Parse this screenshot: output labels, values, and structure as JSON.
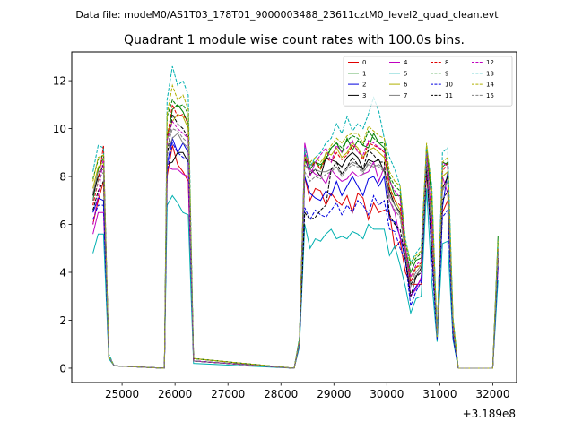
{
  "chart_data": {
    "type": "line",
    "suptitle": "Data file: modeM0/AS1T03_178T01_9000003488_23611cztM0_level2_quad_clean.evt",
    "title": "Quadrant 1 module wise count rates with 100.0s bins.",
    "xlabel": "",
    "ylabel": "",
    "x_offset_label": "+3.189e8",
    "xlim": [
      24050,
      32450
    ],
    "ylim": [
      -0.6,
      13.2
    ],
    "xticks": [
      25000,
      26000,
      27000,
      28000,
      29000,
      30000,
      31000,
      32000
    ],
    "yticks": [
      0,
      2,
      4,
      6,
      8,
      10,
      12
    ],
    "legend": {
      "location": "upper right",
      "columns": 4
    },
    "x": [
      24450,
      24550,
      24650,
      24750,
      24850,
      25800,
      25850,
      25950,
      26050,
      26150,
      26250,
      26350,
      28250,
      28350,
      28450,
      28550,
      28650,
      28750,
      28850,
      28950,
      29050,
      29150,
      29250,
      29350,
      29450,
      29550,
      29650,
      29750,
      29850,
      29950,
      30050,
      30150,
      30250,
      30350,
      30450,
      30550,
      30650,
      30750,
      30850,
      30950,
      31050,
      31150,
      31250,
      31350,
      31450,
      32000,
      32100
    ],
    "series": [
      {
        "name": "0",
        "color": "#e00000",
        "dash": "solid",
        "values": [
          6.0,
          7.0,
          7.8,
          0.5,
          0.1,
          0.0,
          8.0,
          9.3,
          8.5,
          8.2,
          7.8,
          0.3,
          0.0,
          1.0,
          8.0,
          7.0,
          7.5,
          7.4,
          6.8,
          7.3,
          7.0,
          6.8,
          7.2,
          6.5,
          7.3,
          7.1,
          6.2,
          6.9,
          6.5,
          6.6,
          6.5,
          5.0,
          5.3,
          4.0,
          3.5,
          3.5,
          3.5,
          8.2,
          5.0,
          1.4,
          6.5,
          7.0,
          1.5,
          0.0,
          0.0,
          0.0,
          4.5
        ]
      },
      {
        "name": "1",
        "color": "#008000",
        "dash": "solid",
        "values": [
          7.0,
          8.3,
          8.8,
          0.5,
          0.1,
          0.0,
          9.5,
          10.8,
          11.0,
          10.7,
          10.2,
          0.4,
          0.0,
          1.2,
          9.0,
          8.3,
          8.6,
          8.5,
          8.7,
          9.2,
          9.4,
          9.0,
          9.6,
          9.1,
          9.5,
          9.3,
          9.2,
          9.8,
          9.4,
          9.2,
          7.9,
          7.2,
          7.2,
          5.0,
          4.0,
          4.5,
          4.6,
          9.2,
          7.0,
          1.3,
          8.6,
          8.5,
          2.0,
          0.0,
          0.0,
          0.0,
          5.5
        ]
      },
      {
        "name": "2",
        "color": "#0000e0",
        "dash": "solid",
        "values": [
          6.5,
          7.1,
          7.0,
          0.5,
          0.1,
          0.0,
          8.5,
          9.6,
          9.0,
          9.4,
          9.0,
          0.3,
          0.0,
          1.0,
          8.0,
          7.3,
          7.1,
          7.0,
          7.4,
          7.2,
          7.8,
          7.2,
          7.6,
          8.0,
          7.6,
          7.2,
          7.9,
          8.0,
          7.6,
          8.0,
          6.2,
          6.1,
          5.5,
          4.5,
          3.0,
          3.4,
          3.7,
          8.7,
          4.8,
          1.3,
          6.7,
          8.2,
          1.4,
          0.0,
          0.0,
          0.0,
          4.6
        ]
      },
      {
        "name": "3",
        "color": "#000000",
        "dash": "solid",
        "values": [
          7.2,
          8.0,
          8.5,
          0.5,
          0.1,
          0.0,
          8.5,
          8.6,
          9.0,
          9.0,
          8.6,
          0.3,
          0.0,
          1.1,
          8.8,
          8.1,
          8.3,
          8.0,
          8.8,
          8.7,
          8.6,
          8.4,
          8.8,
          9.0,
          8.8,
          8.3,
          8.7,
          8.6,
          8.7,
          8.2,
          7.4,
          6.8,
          6.5,
          4.9,
          3.5,
          3.8,
          4.2,
          8.6,
          5.5,
          1.5,
          7.5,
          8.0,
          1.6,
          0.0,
          0.0,
          0.0,
          4.8
        ]
      },
      {
        "name": "4",
        "color": "#c000c0",
        "dash": "solid",
        "values": [
          5.6,
          6.5,
          6.5,
          0.5,
          0.1,
          0.0,
          8.4,
          8.3,
          8.3,
          8.1,
          8.0,
          0.3,
          0.0,
          1.0,
          9.4,
          8.3,
          8.1,
          8.0,
          7.7,
          8.3,
          8.0,
          7.8,
          7.9,
          8.2,
          8.0,
          8.1,
          8.2,
          8.6,
          7.8,
          8.4,
          7.0,
          6.5,
          5.4,
          5.0,
          3.0,
          3.3,
          3.8,
          8.6,
          4.8,
          1.5,
          8.0,
          7.3,
          1.3,
          0.0,
          0.0,
          0.0,
          4.2
        ]
      },
      {
        "name": "5",
        "color": "#00b0b0",
        "dash": "solid",
        "values": [
          4.8,
          5.6,
          5.6,
          0.4,
          0.1,
          0.0,
          6.8,
          7.2,
          6.9,
          6.5,
          6.4,
          0.2,
          0.0,
          0.9,
          6.0,
          5.0,
          5.4,
          5.3,
          5.6,
          5.8,
          5.4,
          5.5,
          5.4,
          5.7,
          5.6,
          5.4,
          6.0,
          5.8,
          5.8,
          5.8,
          4.7,
          5.1,
          4.3,
          3.4,
          2.3,
          2.9,
          3.0,
          7.5,
          3.6,
          1.1,
          5.2,
          5.3,
          1.2,
          0.0,
          0.0,
          0.0,
          3.7
        ]
      },
      {
        "name": "6",
        "color": "#b0b000",
        "dash": "solid",
        "values": [
          7.5,
          8.4,
          8.6,
          0.5,
          0.1,
          0.0,
          9.8,
          10.3,
          10.6,
          10.5,
          10.0,
          0.4,
          0.0,
          1.2,
          8.9,
          8.5,
          8.6,
          8.3,
          9.0,
          8.9,
          9.2,
          8.8,
          9.0,
          9.4,
          9.2,
          8.8,
          9.1,
          9.2,
          9.0,
          8.8,
          7.6,
          7.0,
          6.6,
          4.8,
          3.8,
          4.2,
          4.3,
          9.0,
          6.0,
          1.3,
          8.0,
          8.2,
          1.8,
          0.0,
          0.0,
          0.0,
          5.2
        ]
      },
      {
        "name": "7",
        "color": "#808080",
        "dash": "solid",
        "values": [
          7.3,
          8.2,
          8.3,
          0.5,
          0.1,
          0.0,
          9.0,
          9.6,
          9.8,
          9.4,
          9.2,
          0.3,
          0.0,
          1.1,
          8.5,
          8.2,
          8.3,
          8.2,
          8.2,
          8.3,
          8.4,
          8.1,
          8.4,
          8.6,
          8.5,
          8.2,
          8.5,
          8.4,
          8.5,
          8.3,
          7.2,
          6.8,
          6.4,
          4.8,
          3.6,
          4.0,
          4.3,
          8.8,
          5.6,
          1.4,
          7.4,
          7.8,
          1.6,
          0.0,
          0.0,
          0.0,
          4.9
        ]
      },
      {
        "name": "8",
        "color": "#e00000",
        "dash": "dashed",
        "values": [
          6.8,
          7.8,
          9.3,
          0.5,
          0.1,
          0.0,
          9.6,
          11.0,
          10.5,
          10.6,
          10.2,
          0.4,
          0.0,
          1.2,
          8.8,
          8.4,
          8.6,
          8.3,
          8.8,
          8.6,
          9.0,
          8.7,
          8.9,
          9.3,
          9.1,
          8.7,
          9.4,
          9.3,
          9.2,
          9.0,
          7.5,
          7.0,
          6.8,
          5.0,
          3.6,
          4.2,
          4.4,
          9.2,
          6.0,
          1.3,
          8.2,
          8.6,
          1.8,
          0.0,
          0.0,
          0.0,
          5.0
        ]
      },
      {
        "name": "9",
        "color": "#008000",
        "dash": "dashed",
        "values": [
          7.9,
          8.7,
          8.9,
          0.5,
          0.1,
          0.0,
          10.5,
          11.2,
          10.9,
          11.0,
          10.6,
          0.4,
          0.0,
          1.2,
          8.6,
          8.6,
          8.6,
          8.4,
          8.8,
          9.2,
          9.4,
          9.2,
          9.5,
          9.7,
          9.6,
          9.3,
          9.9,
          9.6,
          9.4,
          9.4,
          8.0,
          7.6,
          7.4,
          5.2,
          4.3,
          4.6,
          4.8,
          9.3,
          7.2,
          1.3,
          8.4,
          8.6,
          2.0,
          0.0,
          0.0,
          0.0,
          5.3
        ]
      },
      {
        "name": "10",
        "color": "#0000e0",
        "dash": "dashed",
        "values": [
          6.2,
          6.8,
          6.8,
          0.5,
          0.1,
          0.0,
          8.2,
          9.4,
          9.0,
          8.8,
          8.7,
          0.3,
          0.0,
          1.0,
          6.7,
          6.2,
          6.6,
          6.4,
          6.3,
          6.6,
          6.9,
          6.4,
          6.8,
          6.5,
          7.0,
          6.8,
          6.4,
          7.2,
          6.8,
          7.0,
          5.8,
          5.7,
          5.0,
          4.5,
          2.6,
          3.2,
          3.6,
          8.6,
          4.5,
          1.2,
          6.3,
          6.6,
          1.3,
          0.0,
          0.0,
          0.0,
          4.3
        ]
      },
      {
        "name": "11",
        "color": "#000000",
        "dash": "dashed",
        "values": [
          6.6,
          7.4,
          7.8,
          0.5,
          0.1,
          0.0,
          8.8,
          10.6,
          10.2,
          10.0,
          9.6,
          0.3,
          0.0,
          1.1,
          6.5,
          6.2,
          6.3,
          6.6,
          6.8,
          8.3,
          8.6,
          8.1,
          8.4,
          8.8,
          8.5,
          8.3,
          9.1,
          8.9,
          8.6,
          8.6,
          6.4,
          6.0,
          5.8,
          4.6,
          3.0,
          3.8,
          4.0,
          8.4,
          5.0,
          1.4,
          7.0,
          7.4,
          1.5,
          0.0,
          0.0,
          0.0,
          4.6
        ]
      },
      {
        "name": "12",
        "color": "#c000c0",
        "dash": "dashed",
        "values": [
          6.0,
          7.2,
          8.8,
          0.5,
          0.1,
          0.0,
          9.5,
          10.3,
          10.0,
          9.8,
          9.6,
          0.3,
          0.0,
          1.1,
          9.0,
          8.0,
          8.6,
          8.9,
          9.2,
          8.6,
          9.3,
          9.0,
          9.2,
          9.5,
          9.0,
          8.9,
          9.5,
          9.4,
          9.2,
          9.1,
          7.8,
          7.4,
          7.1,
          5.0,
          3.8,
          4.3,
          4.5,
          9.0,
          6.2,
          1.3,
          8.6,
          8.4,
          1.8,
          0.0,
          0.0,
          0.0,
          5.0
        ]
      },
      {
        "name": "13",
        "color": "#00b0b0",
        "dash": "dashed",
        "values": [
          8.2,
          9.3,
          9.2,
          0.6,
          0.1,
          0.0,
          11.2,
          12.6,
          11.8,
          12.0,
          11.4,
          0.4,
          0.0,
          1.3,
          9.2,
          8.4,
          8.8,
          9.0,
          9.4,
          9.6,
          10.2,
          9.8,
          10.5,
          9.9,
          10.2,
          10.0,
          10.6,
          11.3,
          10.7,
          9.6,
          8.8,
          8.3,
          7.6,
          5.4,
          4.4,
          4.8,
          5.1,
          9.3,
          7.6,
          1.3,
          9.0,
          9.2,
          2.1,
          0.0,
          0.0,
          0.0,
          5.2
        ]
      },
      {
        "name": "14",
        "color": "#b0b000",
        "dash": "dashed",
        "values": [
          7.8,
          8.8,
          8.9,
          0.5,
          0.1,
          0.0,
          10.6,
          11.8,
          11.2,
          11.4,
          10.8,
          0.4,
          0.0,
          1.2,
          8.8,
          8.6,
          8.8,
          8.6,
          8.9,
          9.3,
          9.6,
          9.4,
          9.7,
          9.8,
          9.8,
          9.4,
          10.1,
          9.9,
          9.7,
          9.6,
          8.2,
          7.8,
          7.6,
          5.3,
          4.4,
          4.7,
          4.9,
          9.4,
          7.4,
          1.3,
          8.6,
          8.8,
          2.1,
          0.0,
          0.0,
          0.0,
          5.3
        ]
      },
      {
        "name": "15",
        "color": "#808080",
        "dash": "dashed",
        "values": [
          7.0,
          7.8,
          8.2,
          0.5,
          0.1,
          0.0,
          9.2,
          10.0,
          9.9,
          9.6,
          9.4,
          0.3,
          0.0,
          1.1,
          8.2,
          7.8,
          8.0,
          7.9,
          8.1,
          8.2,
          8.4,
          8.0,
          8.3,
          8.5,
          8.4,
          8.1,
          8.6,
          8.5,
          8.4,
          8.2,
          7.0,
          6.6,
          6.3,
          4.7,
          3.4,
          3.9,
          4.1,
          8.7,
          5.5,
          1.4,
          7.5,
          7.8,
          1.6,
          0.0,
          0.0,
          0.0,
          4.8
        ]
      }
    ]
  }
}
